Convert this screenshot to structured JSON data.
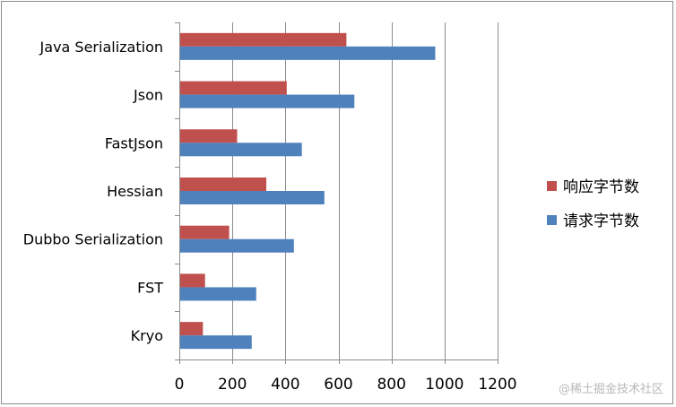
{
  "chart_data": {
    "type": "bar",
    "orientation": "horizontal",
    "categories": [
      "Java Serialization",
      "Json",
      "FastJson",
      "Hessian",
      "Dubbo Serialization",
      "FST",
      "Kryo"
    ],
    "series": [
      {
        "name": "响应字节数",
        "color": "#c0504d",
        "values": [
          630,
          405,
          218,
          328,
          188,
          97,
          89
        ]
      },
      {
        "name": "请求字节数",
        "color": "#4f81bd",
        "values": [
          965,
          660,
          462,
          547,
          432,
          290,
          273
        ]
      }
    ],
    "xlim": [
      0,
      1200
    ],
    "xticks": [
      0,
      200,
      400,
      600,
      800,
      1000,
      1200
    ],
    "grid": "vertical",
    "legend": "right"
  },
  "watermark": "@稀土掘金技术社区"
}
